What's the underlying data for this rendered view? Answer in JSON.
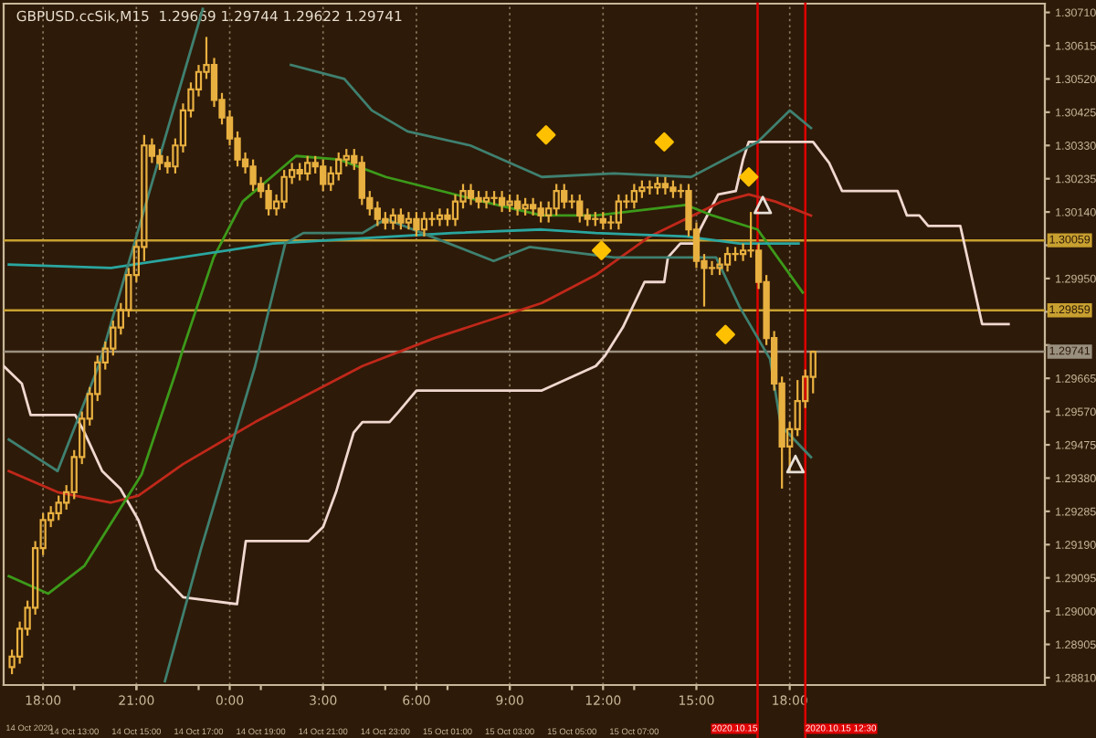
{
  "chart_data": {
    "type": "candlestick",
    "title": "GBPUSD.ccSik,M15  1.29669 1.29744 1.29622 1.29741",
    "xlim": [
      "2020-10-14T10:44",
      "2020-10-15T20:12"
    ],
    "ylim": [
      1.28789,
      1.30735
    ],
    "xlabel": "14 Oct 2020",
    "xticks": [
      {
        "value": "2020-10-14T13:00",
        "label": "14 Oct 13:00"
      },
      {
        "value": "2020-10-14T15:00",
        "label": "14 Oct 15:00"
      },
      {
        "value": "2020-10-14T17:00",
        "label": "14 Oct 17:00"
      },
      {
        "value": "2020-10-14T19:00",
        "label": "14 Oct 19:00"
      },
      {
        "value": "2020-10-14T21:00",
        "label": "14 Oct 21:00"
      },
      {
        "value": "2020-10-14T23:00",
        "label": "14 Oct 23:00"
      },
      {
        "value": "2020-10-15T01:00",
        "label": "15 Oct 01:00"
      },
      {
        "value": "2020-10-15T03:00",
        "label": "15 Oct 03:00"
      },
      {
        "value": "2020-10-15T05:00",
        "label": "15 Oct 05:00"
      },
      {
        "value": "2020-10-15T07:00",
        "label": "15 Oct 07:00"
      }
    ],
    "x2lim": [
      "2020-10-14T16:44",
      "2020-10-16T02:12"
    ],
    "x2ticks": [
      {
        "value": "2020-10-14T18:00",
        "label": "18:00"
      },
      {
        "value": "2020-10-14T21:00",
        "label": "21:00"
      },
      {
        "value": "2020-10-15T00:00",
        "label": "0:00"
      },
      {
        "value": "2020-10-15T03:00",
        "label": "3:00"
      },
      {
        "value": "2020-10-15T06:00",
        "label": "6:00"
      },
      {
        "value": "2020-10-15T09:00",
        "label": "9:00"
      },
      {
        "value": "2020-10-15T12:00",
        "label": "12:00"
      },
      {
        "value": "2020-10-15T15:00",
        "label": "15:00"
      },
      {
        "value": "2020-10-15T18:00",
        "label": "18:00"
      }
    ],
    "yticks": [
      {
        "value": 1.2881,
        "label": "1.28810"
      },
      1.28905,
      {
        "value": 1.29,
        "label": "1.29000"
      },
      1.29095,
      {
        "value": 1.2919,
        "label": "1.29190"
      },
      1.29285,
      {
        "value": 1.2938,
        "label": "1.29380"
      },
      1.29475,
      {
        "value": 1.2957,
        "label": "1.29570"
      },
      1.29665,
      {
        "value": 1.2976,
        "label": null
      },
      {
        "value": 1.29855,
        "label": null
      },
      {
        "value": 1.2995,
        "label": "1.29950"
      },
      {
        "value": 1.30045,
        "label": null
      },
      {
        "value": 1.3014,
        "label": "1.30140"
      },
      1.30235,
      {
        "value": 1.3033,
        "label": "1.30330"
      },
      1.30425,
      {
        "value": 1.3052,
        "label": "1.30520"
      },
      1.30615,
      {
        "value": 1.3071,
        "label": "1.30710"
      }
    ],
    "grid": "x2",
    "legend": false,
    "ref_lines": [
      {
        "axis": "y",
        "value": 1.30059,
        "label": "1.30059",
        "color": "#c8a030"
      },
      {
        "axis": "y",
        "value": 1.29859,
        "label": "1.29859",
        "color": "#c8a030"
      },
      {
        "axis": "y",
        "value": 1.29741,
        "label": "1.29741",
        "color": "#9a9080"
      },
      {
        "axis": "x",
        "value": "2020-10-15T10:58",
        "label": "2020.10.15",
        "color": "#e00000"
      },
      {
        "axis": "x",
        "value": "2020-10-15T12:30",
        "label": "2020.10.15 12:30",
        "color": "#e00000"
      }
    ],
    "series": [
      {
        "color": "#e8b040",
        "x": [
          "2020-10-14T11:00",
          "2020-10-14T11:15",
          "2020-10-14T11:30",
          "2020-10-14T11:45",
          "2020-10-14T12:00",
          "2020-10-14T12:15",
          "2020-10-14T12:30",
          "2020-10-14T12:45",
          "2020-10-14T13:00",
          "2020-10-14T13:15",
          "2020-10-14T13:30",
          "2020-10-14T13:45",
          "2020-10-14T14:00",
          "2020-10-14T14:15",
          "2020-10-14T14:30",
          "2020-10-14T14:45",
          "2020-10-14T15:00",
          "2020-10-14T15:15",
          "2020-10-14T15:30",
          "2020-10-14T15:45",
          "2020-10-14T16:00",
          "2020-10-14T16:15",
          "2020-10-14T16:30",
          "2020-10-14T16:45",
          "2020-10-14T17:00",
          "2020-10-14T17:15",
          "2020-10-14T17:30",
          "2020-10-14T17:45",
          "2020-10-14T18:00",
          "2020-10-14T18:15",
          "2020-10-14T18:30",
          "2020-10-14T18:45",
          "2020-10-14T19:00",
          "2020-10-14T19:15",
          "2020-10-14T19:30",
          "2020-10-14T19:45",
          "2020-10-14T20:00",
          "2020-10-14T20:15",
          "2020-10-14T20:30",
          "2020-10-14T20:45",
          "2020-10-14T21:00",
          "2020-10-14T21:15",
          "2020-10-14T21:30",
          "2020-10-14T21:45",
          "2020-10-14T22:00",
          "2020-10-14T22:15",
          "2020-10-14T22:30",
          "2020-10-14T22:45",
          "2020-10-14T23:00",
          "2020-10-14T23:15",
          "2020-10-14T23:30",
          "2020-10-14T23:45",
          "2020-10-15T00:00",
          "2020-10-15T00:15",
          "2020-10-15T00:30",
          "2020-10-15T00:45",
          "2020-10-15T01:00",
          "2020-10-15T01:15",
          "2020-10-15T01:30",
          "2020-10-15T01:45",
          "2020-10-15T02:00",
          "2020-10-15T02:15",
          "2020-10-15T02:30",
          "2020-10-15T02:45",
          "2020-10-15T03:00",
          "2020-10-15T03:15",
          "2020-10-15T03:30",
          "2020-10-15T03:45",
          "2020-10-15T04:00",
          "2020-10-15T04:15",
          "2020-10-15T04:30",
          "2020-10-15T04:45",
          "2020-10-15T05:00",
          "2020-10-15T05:15",
          "2020-10-15T05:30",
          "2020-10-15T05:45",
          "2020-10-15T06:00",
          "2020-10-15T06:15",
          "2020-10-15T06:30",
          "2020-10-15T06:45",
          "2020-10-15T07:00",
          "2020-10-15T07:15",
          "2020-10-15T07:30",
          "2020-10-15T07:45",
          "2020-10-15T08:00",
          "2020-10-15T08:15",
          "2020-10-15T08:30",
          "2020-10-15T08:45",
          "2020-10-15T09:00",
          "2020-10-15T09:15",
          "2020-10-15T09:30",
          "2020-10-15T09:45",
          "2020-10-15T10:00",
          "2020-10-15T10:15",
          "2020-10-15T10:30",
          "2020-10-15T10:45",
          "2020-10-15T11:00",
          "2020-10-15T11:15",
          "2020-10-15T11:30",
          "2020-10-15T11:45",
          "2020-10-15T12:00",
          "2020-10-15T12:15",
          "2020-10-15T12:30",
          "2020-10-15T12:45"
        ],
        "ohlc": [
          [
            1.2884,
            1.2889,
            1.2882,
            1.2887
          ],
          [
            1.2887,
            1.2897,
            1.2885,
            1.2895
          ],
          [
            1.2895,
            1.2903,
            1.2893,
            1.2901
          ],
          [
            1.2901,
            1.292,
            1.2899,
            1.2918
          ],
          [
            1.2918,
            1.2928,
            1.2916,
            1.2926
          ],
          [
            1.2926,
            1.293,
            1.2924,
            1.2928
          ],
          [
            1.2928,
            1.2933,
            1.2926,
            1.2931
          ],
          [
            1.2931,
            1.2936,
            1.2929,
            1.2934
          ],
          [
            1.2934,
            1.2946,
            1.2932,
            1.2944
          ],
          [
            1.2944,
            1.2957,
            1.2942,
            1.2955
          ],
          [
            1.2955,
            1.2964,
            1.2953,
            1.2962
          ],
          [
            1.2962,
            1.2973,
            1.296,
            1.2971
          ],
          [
            1.2971,
            1.2977,
            1.2969,
            1.2975
          ],
          [
            1.2975,
            1.2983,
            1.2973,
            1.2981
          ],
          [
            1.2981,
            1.2988,
            1.2979,
            1.2986
          ],
          [
            1.2986,
            1.2998,
            1.2984,
            1.2996
          ],
          [
            1.2996,
            1.3006,
            1.2994,
            1.3004
          ],
          [
            1.3004,
            1.3036,
            1.3,
            1.3033
          ],
          [
            1.3033,
            1.3035,
            1.3028,
            1.303
          ],
          [
            1.303,
            1.3032,
            1.3026,
            1.3028
          ],
          [
            1.3028,
            1.303,
            1.3025,
            1.3027
          ],
          [
            1.3027,
            1.3035,
            1.3025,
            1.3033
          ],
          [
            1.3033,
            1.3045,
            1.3031,
            1.3043
          ],
          [
            1.3043,
            1.3051,
            1.3041,
            1.3049
          ],
          [
            1.3049,
            1.3056,
            1.3047,
            1.3054
          ],
          [
            1.3054,
            1.3064,
            1.3052,
            1.3056
          ],
          [
            1.3056,
            1.3058,
            1.3044,
            1.3046
          ],
          [
            1.3046,
            1.3048,
            1.3039,
            1.3041
          ],
          [
            1.3041,
            1.3043,
            1.3033,
            1.3035
          ],
          [
            1.3035,
            1.3037,
            1.3027,
            1.3029
          ],
          [
            1.3029,
            1.3031,
            1.3025,
            1.3027
          ],
          [
            1.3027,
            1.3029,
            1.302,
            1.3022
          ],
          [
            1.3022,
            1.3024,
            1.3018,
            1.302
          ],
          [
            1.302,
            1.3022,
            1.3013,
            1.3015
          ],
          [
            1.3015,
            1.3019,
            1.3013,
            1.3017
          ],
          [
            1.3017,
            1.3026,
            1.3015,
            1.3024
          ],
          [
            1.3024,
            1.3028,
            1.3022,
            1.3026
          ],
          [
            1.3026,
            1.3028,
            1.3023,
            1.3025
          ],
          [
            1.3025,
            1.303,
            1.3023,
            1.3028
          ],
          [
            1.3028,
            1.303,
            1.3025,
            1.3027
          ],
          [
            1.3027,
            1.3029,
            1.302,
            1.3022
          ],
          [
            1.3022,
            1.3027,
            1.302,
            1.3025
          ],
          [
            1.3025,
            1.3031,
            1.3023,
            1.3029
          ],
          [
            1.3029,
            1.3032,
            1.3027,
            1.303
          ],
          [
            1.303,
            1.3032,
            1.3026,
            1.3028
          ],
          [
            1.3028,
            1.303,
            1.3016,
            1.3018
          ],
          [
            1.3018,
            1.302,
            1.3013,
            1.3015
          ],
          [
            1.3015,
            1.3017,
            1.301,
            1.3012
          ],
          [
            1.3012,
            1.3014,
            1.3009,
            1.3011
          ],
          [
            1.3011,
            1.3015,
            1.3009,
            1.3013
          ],
          [
            1.3013,
            1.3015,
            1.3009,
            1.3011
          ],
          [
            1.3011,
            1.3014,
            1.3009,
            1.3012
          ],
          [
            1.3012,
            1.3014,
            1.3007,
            1.3009
          ],
          [
            1.3009,
            1.3014,
            1.3007,
            1.3012
          ],
          [
            1.3012,
            1.3014,
            1.301,
            1.3012
          ],
          [
            1.3012,
            1.3015,
            1.301,
            1.3013
          ],
          [
            1.3013,
            1.3015,
            1.301,
            1.3012
          ],
          [
            1.3012,
            1.3019,
            1.301,
            1.3017
          ],
          [
            1.3017,
            1.3022,
            1.3015,
            1.302
          ],
          [
            1.302,
            1.3022,
            1.3016,
            1.3018
          ],
          [
            1.3018,
            1.302,
            1.3015,
            1.3017
          ],
          [
            1.3017,
            1.302,
            1.3015,
            1.3018
          ],
          [
            1.3018,
            1.302,
            1.3016,
            1.3018
          ],
          [
            1.3018,
            1.302,
            1.3014,
            1.3016
          ],
          [
            1.3016,
            1.3019,
            1.3014,
            1.3017
          ],
          [
            1.3017,
            1.3019,
            1.3013,
            1.3015
          ],
          [
            1.3015,
            1.3018,
            1.3013,
            1.3016
          ],
          [
            1.3016,
            1.3018,
            1.3013,
            1.3015
          ],
          [
            1.3015,
            1.3017,
            1.3011,
            1.3013
          ],
          [
            1.3013,
            1.3017,
            1.3011,
            1.3015
          ],
          [
            1.3015,
            1.3022,
            1.3013,
            1.302
          ],
          [
            1.302,
            1.3022,
            1.3015,
            1.3017
          ],
          [
            1.3017,
            1.3019,
            1.3015,
            1.3017
          ],
          [
            1.3017,
            1.3019,
            1.3011,
            1.3013
          ],
          [
            1.3013,
            1.3015,
            1.301,
            1.3012
          ],
          [
            1.3012,
            1.3014,
            1.301,
            1.3012
          ],
          [
            1.3012,
            1.3014,
            1.3009,
            1.3011
          ],
          [
            1.3011,
            1.3013,
            1.3009,
            1.3011
          ],
          [
            1.3011,
            1.3019,
            1.3009,
            1.3017
          ],
          [
            1.3017,
            1.3019,
            1.3015,
            1.3017
          ],
          [
            1.3017,
            1.3022,
            1.3015,
            1.302
          ],
          [
            1.302,
            1.3023,
            1.3018,
            1.3021
          ],
          [
            1.3021,
            1.3023,
            1.3019,
            1.3021
          ],
          [
            1.3021,
            1.3024,
            1.3019,
            1.3022
          ],
          [
            1.3022,
            1.3024,
            1.3019,
            1.3021
          ],
          [
            1.3021,
            1.3023,
            1.3018,
            1.302
          ],
          [
            1.302,
            1.3022,
            1.3018,
            1.302
          ],
          [
            1.302,
            1.3022,
            1.3007,
            1.3009
          ],
          [
            1.3009,
            1.3011,
            1.2998,
            1.3
          ],
          [
            1.3,
            1.3002,
            1.2987,
            1.2998
          ],
          [
            1.2998,
            1.3,
            1.2996,
            1.2998
          ],
          [
            1.2998,
            1.3001,
            1.2996,
            1.2999
          ],
          [
            1.2999,
            1.3004,
            1.2997,
            1.3002
          ],
          [
            1.3002,
            1.3004,
            1.3,
            1.3002
          ],
          [
            1.3002,
            1.3005,
            1.3,
            1.3003
          ],
          [
            1.3003,
            1.3014,
            1.3001,
            1.3003
          ],
          [
            1.3003,
            1.3005,
            1.2992,
            1.2994
          ],
          [
            1.2994,
            1.2996,
            1.2976,
            1.2978
          ],
          [
            1.2978,
            1.298,
            1.2963,
            1.2965
          ],
          [
            1.2965,
            1.2967,
            1.2935,
            1.2947
          ],
          [
            1.2947,
            1.2954,
            1.294,
            1.2952
          ],
          [
            1.2952,
            1.2966,
            1.295,
            1.296
          ],
          [
            1.296,
            1.2969,
            1.2958,
            1.2967
          ],
          [
            1.29669,
            1.29744,
            1.29622,
            1.29741
          ]
        ]
      },
      {
        "type": "line",
        "color": "#f0d8d0",
        "x": [
          "2020-10-14T10:44",
          "2020-10-14T11:19",
          "2020-10-14T11:36",
          "2020-10-14T13:02",
          "2020-10-14T13:20",
          "2020-10-14T13:54",
          "2020-10-14T14:29",
          "2020-10-14T15:04",
          "2020-10-14T15:38",
          "2020-10-14T16:30",
          "2020-10-14T18:14",
          "2020-10-14T18:31",
          "2020-10-14T20:32",
          "2020-10-14T21:00",
          "2020-10-14T21:25",
          "2020-10-14T21:59",
          "2020-10-14T22:16",
          "2020-10-14T23:08",
          "2020-10-14T23:26",
          "2020-10-15T00:00",
          "2020-10-15T04:02",
          "2020-10-15T05:46",
          "2020-10-15T06:04",
          "2020-10-15T06:38",
          "2020-10-15T07:20",
          "2020-10-15T07:58",
          "2020-10-15T08:05",
          "2020-10-15T08:29",
          "2020-10-15T08:57",
          "2020-10-15T09:07",
          "2020-10-15T09:42",
          "2020-10-15T10:16",
          "2020-10-15T10:30",
          "2020-10-15T10:41",
          "2020-10-15T11:08",
          "2020-10-15T12:45",
          "2020-10-15T13:16",
          "2020-10-15T13:41",
          "2020-10-15T15:28",
          "2020-10-15T15:46",
          "2020-10-15T16:10",
          "2020-10-15T16:27",
          "2020-10-15T17:29",
          "2020-10-15T17:53",
          "2020-10-15T18:11",
          "2020-10-15T19:02"
        ],
        "values": [
          1.297,
          1.2965,
          1.2956,
          1.2956,
          1.2951,
          1.294,
          1.2935,
          1.2926,
          1.2912,
          1.2904,
          1.2902,
          1.292,
          1.292,
          1.2924,
          1.2934,
          1.2951,
          1.2954,
          1.2954,
          1.2957,
          1.2963,
          1.2963,
          1.297,
          1.2973,
          1.2981,
          1.2994,
          1.2994,
          1.3001,
          1.3005,
          1.3005,
          1.3009,
          1.3019,
          1.302,
          1.3029,
          1.3034,
          1.3034,
          1.3034,
          1.3028,
          1.302,
          1.302,
          1.3013,
          1.3013,
          1.301,
          1.301,
          1.2994,
          1.2982,
          1.2982
        ]
      },
      {
        "type": "line",
        "color": "#c0281a",
        "x": [
          "2020-10-14T10:54",
          "2020-10-14T12:28",
          "2020-10-14T14:11",
          "2020-10-14T15:04",
          "2020-10-14T16:30",
          "2020-10-14T18:49",
          "2020-10-14T22:16",
          "2020-10-15T00:35",
          "2020-10-15T04:02",
          "2020-10-15T05:46",
          "2020-10-15T07:30",
          "2020-10-15T09:49",
          "2020-10-15T10:41",
          "2020-10-15T11:32",
          "2020-10-15T12:41"
        ],
        "values": [
          1.294,
          1.2934,
          1.2931,
          1.2933,
          1.2942,
          1.2954,
          1.297,
          1.2978,
          1.2988,
          1.2996,
          1.3007,
          1.3017,
          1.3019,
          1.3017,
          1.3013
        ]
      },
      {
        "type": "line",
        "color": "#3c9a1a",
        "x": [
          "2020-10-14T10:54",
          "2020-10-14T12:10",
          "2020-10-14T13:20",
          "2020-10-14T15:10",
          "2020-10-14T16:20",
          "2020-10-14T16:30",
          "2020-10-14T17:29",
          "2020-10-14T18:25",
          "2020-10-14T20:08",
          "2020-10-14T21:31",
          "2020-10-14T23:01",
          "2020-10-15T02:08",
          "2020-10-15T04:02",
          "2020-10-15T05:46",
          "2020-10-15T08:40",
          "2020-10-15T09:31",
          "2020-10-15T10:58",
          "2020-10-15T12:25"
        ],
        "values": [
          1.291,
          1.2905,
          1.2913,
          1.2939,
          1.297,
          1.2975,
          1.3001,
          1.3017,
          1.303,
          1.3029,
          1.3024,
          1.3017,
          1.3013,
          1.3013,
          1.3016,
          1.3013,
          1.3009,
          1.2991
        ]
      },
      {
        "type": "line",
        "color": "#2aa6a0",
        "x": [
          "2020-10-14T10:54",
          "2020-10-14T14:11",
          "2020-10-14T19:23",
          "2020-10-15T01:10",
          "2020-10-15T04:02",
          "2020-10-15T05:46",
          "2020-10-15T08:40",
          "2020-10-15T10:23",
          "2020-10-15T12:17"
        ],
        "values": [
          1.2999,
          1.2998,
          1.3005,
          1.3008,
          1.3009,
          1.3008,
          1.3007,
          1.3005,
          1.3005
        ]
      },
      {
        "type": "line",
        "color": "#3f8070",
        "x": [
          "2020-10-14T10:54",
          "2020-10-14T12:28",
          "2020-10-14T13:47",
          "2020-10-14T17:08",
          "2020-10-14T18:52",
          "2020-10-14T19:58",
          "2020-10-14T21:41",
          "2020-10-14T22:34",
          "2020-10-14T23:43",
          "2020-10-15T01:44",
          "2020-10-15T04:02",
          "2020-10-15T06:21",
          "2020-10-15T08:50",
          "2020-10-15T10:58",
          "2020-10-15T12:00",
          "2020-10-15T12:41"
        ],
        "values": [
          1.2949,
          1.294,
          1.297,
          1.3072,
          null,
          1.3056,
          1.3052,
          1.3043,
          1.3037,
          1.3033,
          1.3024,
          1.3025,
          1.3024,
          1.3034,
          1.3043,
          1.3038
        ]
      },
      {
        "type": "line",
        "color": "#3f8070",
        "x": [
          "2020-10-14T15:55",
          "2020-10-14T17:05",
          "2020-10-14T18:49",
          "2020-10-14T19:47",
          "2020-10-14T20:22",
          "2020-10-14T22:16",
          "2020-10-14T23:01",
          "2020-10-15T00:11",
          "2020-10-15T02:29",
          "2020-10-15T03:38",
          "2020-10-15T06:21",
          "2020-10-15T09:38",
          "2020-10-15T10:23",
          "2020-10-15T11:22",
          "2020-10-15T11:43",
          "2020-10-15T12:41"
        ],
        "values": [
          1.288,
          1.2918,
          1.297,
          1.3005,
          1.3008,
          1.3008,
          1.3012,
          1.3008,
          1.3,
          1.3004,
          1.3001,
          1.3001,
          1.2987,
          1.2972,
          1.2953,
          1.2944
        ]
      },
      {
        "type": "scatter",
        "color": "#ffc000",
        "marker": "diamond",
        "x": [
          "2020-10-15T04:10",
          "2020-10-15T05:57",
          "2020-10-15T07:58",
          "2020-10-15T09:56",
          "2020-10-15T10:41"
        ],
        "values": [
          1.3036,
          1.3003,
          1.3034,
          1.2979,
          1.3024
        ]
      },
      {
        "type": "scatter",
        "color": "#e8e0d8",
        "marker": "triangle",
        "x": [
          "2020-10-15T11:08",
          "2020-10-15T12:11"
        ],
        "values": [
          1.3016,
          1.2942
        ]
      }
    ]
  }
}
